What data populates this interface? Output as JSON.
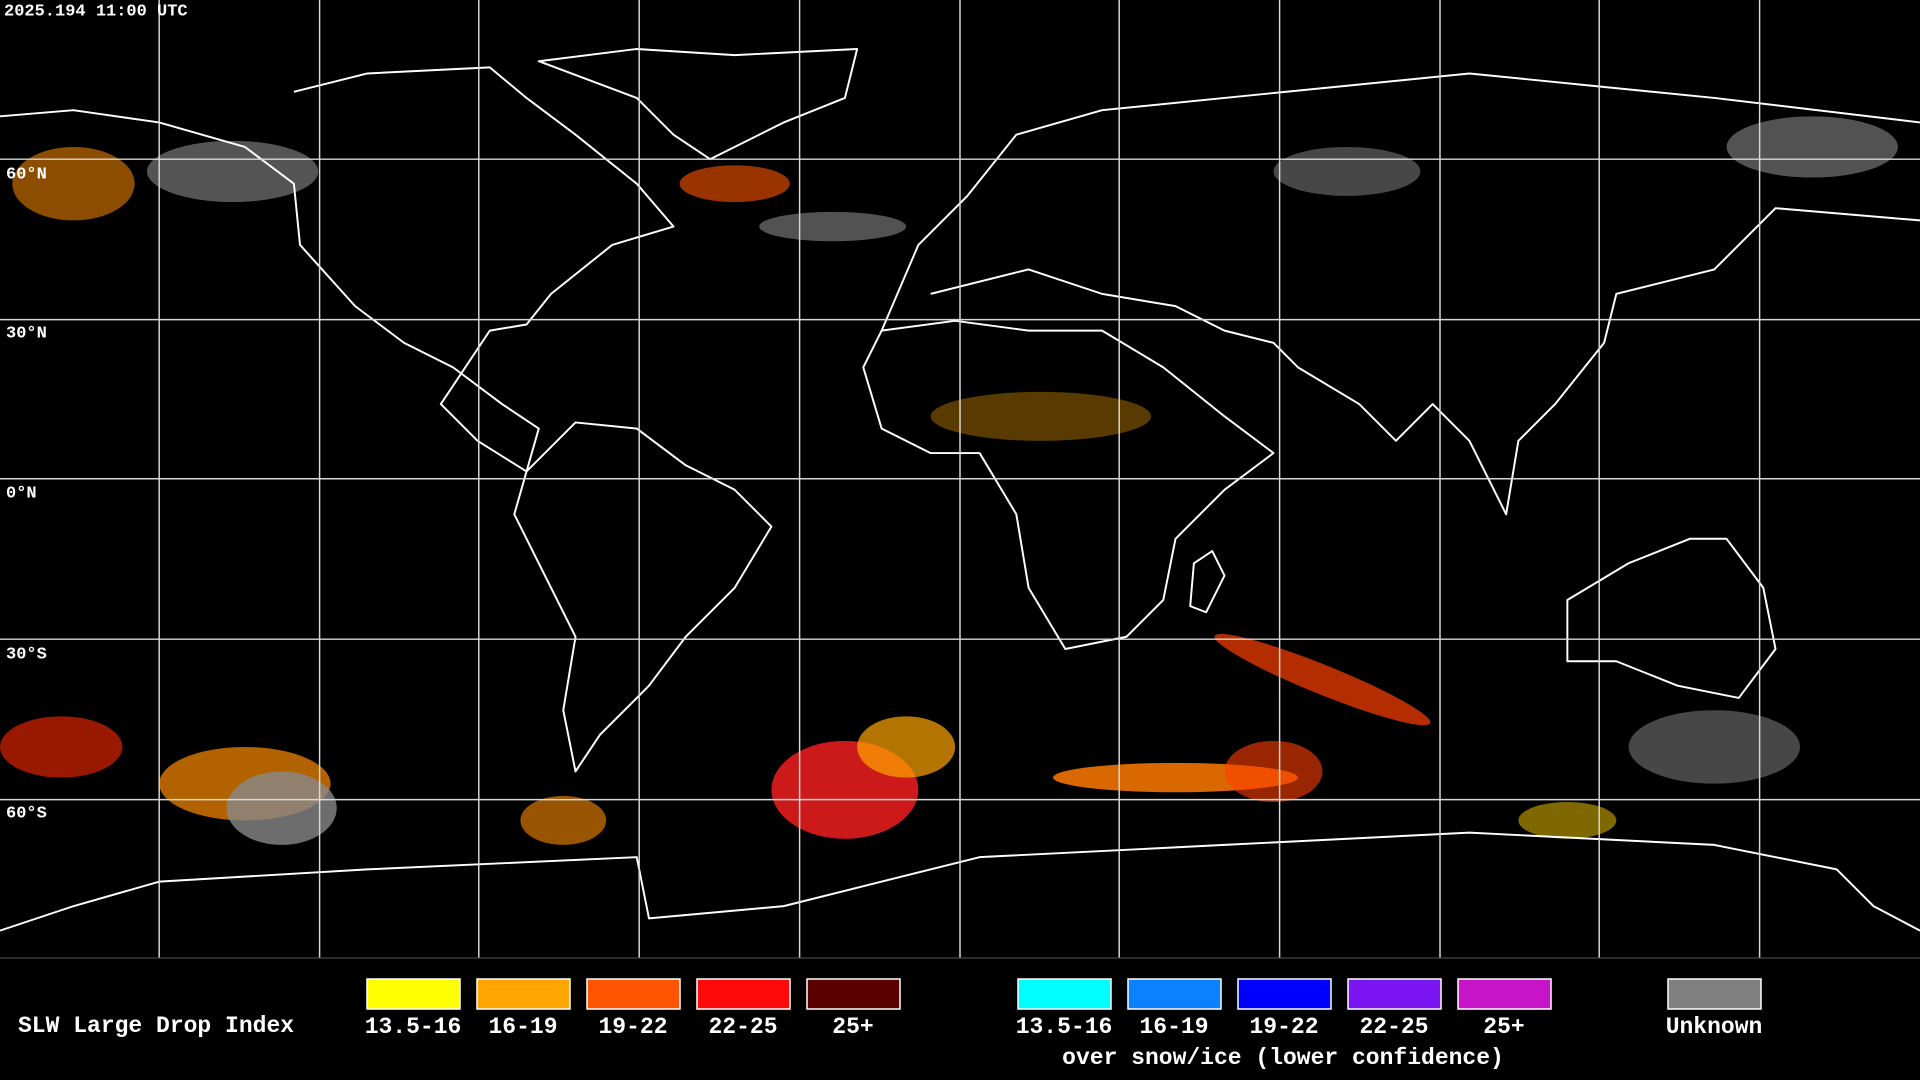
{
  "header": {
    "timestamp": "2025.194 11:00 UTC"
  },
  "map": {
    "latitude_labels": [
      "60°N",
      "30°N",
      "0°N",
      "30°S",
      "60°S"
    ]
  },
  "legend": {
    "title": "SLW Large Drop Index",
    "items": [
      {
        "label": "13.5-16",
        "color": "#ffff00"
      },
      {
        "label": "16-19",
        "color": "#ffa500"
      },
      {
        "label": "19-22",
        "color": "#ff5500"
      },
      {
        "label": "22-25",
        "color": "#ff0a0a"
      },
      {
        "label": "25+",
        "color": "#5a0000"
      }
    ],
    "snow_ice_items": [
      {
        "label": "13.5-16",
        "color": "#00ffff"
      },
      {
        "label": "16-19",
        "color": "#0a82ff"
      },
      {
        "label": "19-22",
        "color": "#0000ff"
      },
      {
        "label": "22-25",
        "color": "#7a14f0"
      },
      {
        "label": "25+",
        "color": "#c814c8"
      }
    ],
    "snow_ice_caption": "over snow/ice (lower confidence)",
    "unknown": {
      "label": "Unknown",
      "color": "#808080"
    }
  }
}
